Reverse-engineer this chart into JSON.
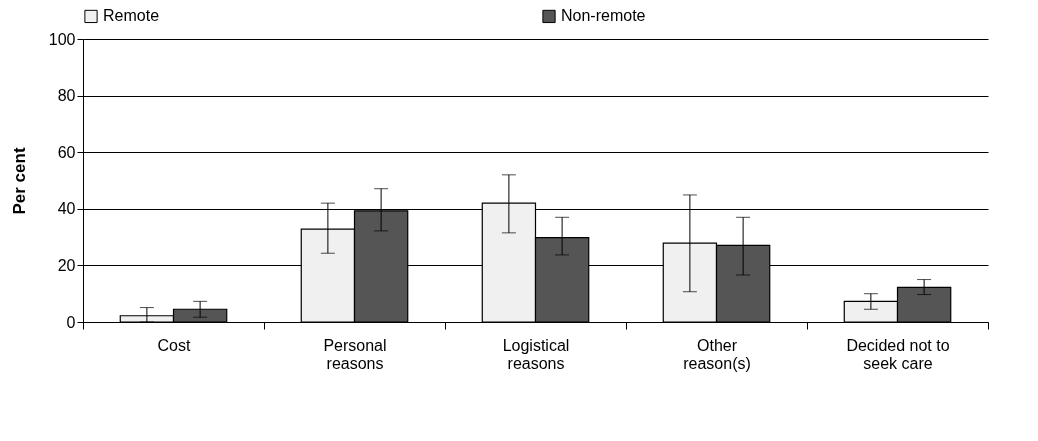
{
  "chart_data": {
    "type": "bar",
    "ylabel": "Per cent",
    "categories": [
      "Cost",
      "Personal reasons",
      "Logistical reasons",
      "Other reason(s)",
      "Decided not to seek care"
    ],
    "series": [
      {
        "name": "Remote",
        "color": "#f0f0f0",
        "values": [
          2.2,
          32.8,
          42,
          27.9,
          7.3
        ],
        "errors": [
          [
            0,
            5.1
          ],
          [
            24.3,
            42
          ],
          [
            31.5,
            52
          ],
          [
            10.7,
            44.9
          ],
          [
            4.5,
            10
          ]
        ]
      },
      {
        "name": "Non-remote",
        "color": "#555555",
        "values": [
          4.5,
          39.3,
          29.8,
          27.1,
          12.2
        ],
        "errors": [
          [
            1.7,
            7.3
          ],
          [
            32.2,
            47.1
          ],
          [
            23.7,
            37
          ],
          [
            16.6,
            37
          ],
          [
            9.7,
            15
          ]
        ]
      }
    ],
    "ylim": [
      0,
      100
    ],
    "yticks": [
      0,
      20,
      40,
      60,
      80,
      100
    ],
    "grid": "y",
    "legend": "top"
  }
}
